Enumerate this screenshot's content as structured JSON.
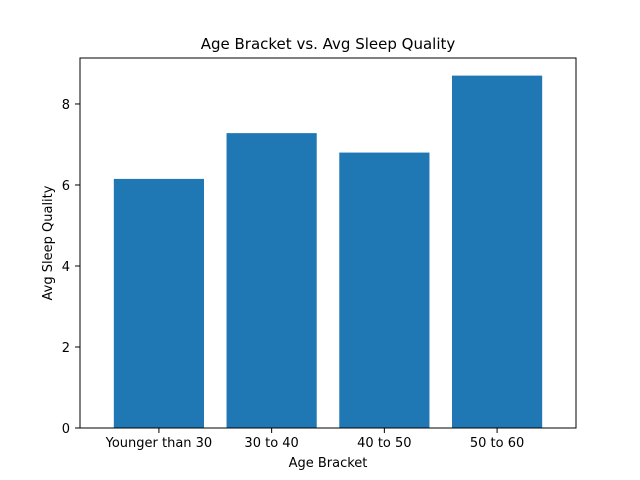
{
  "chart_data": {
    "type": "bar",
    "title": "Age Bracket vs. Avg Sleep Quality",
    "xlabel": "Age Bracket",
    "ylabel": "Avg Sleep Quality",
    "categories": [
      "Younger than 30",
      "30 to 40",
      "40 to 50",
      "50 to 60"
    ],
    "values": [
      6.15,
      7.28,
      6.8,
      8.7
    ],
    "ylim": [
      0,
      9.135
    ],
    "yticks": [
      0,
      2,
      4,
      6,
      8
    ],
    "grid": false,
    "bar_color": "#1f77b4"
  }
}
